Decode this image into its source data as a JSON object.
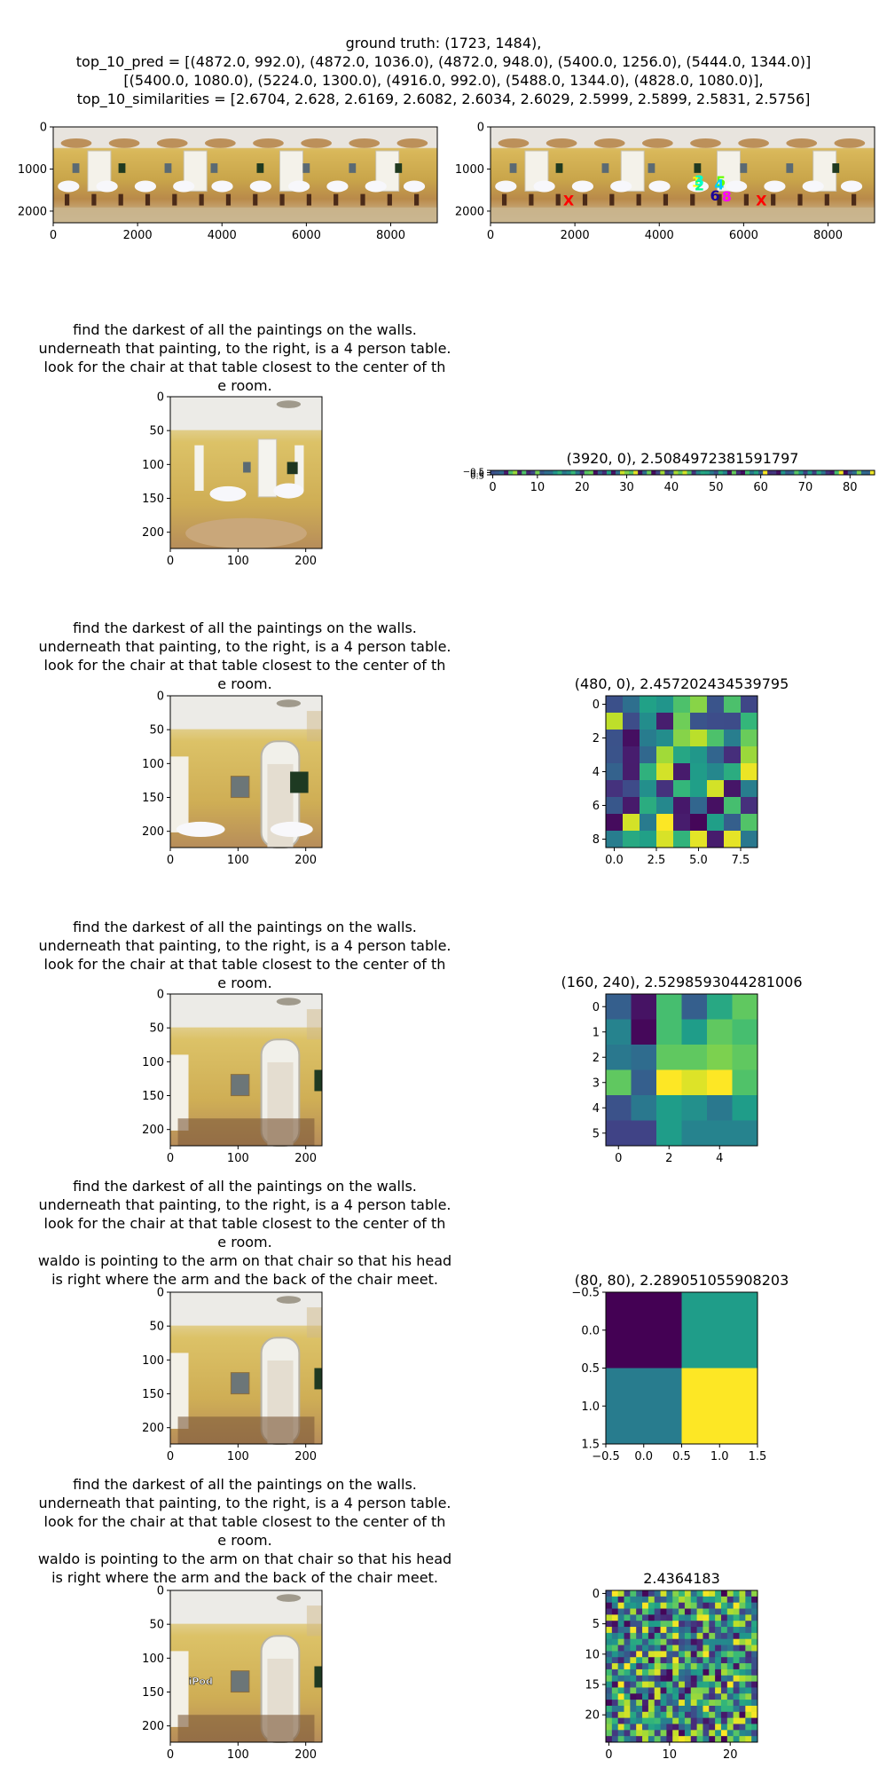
{
  "figure": {
    "suptitle": [
      "ground truth: (1723, 1484),",
      "top_10_pred = [(4872.0, 992.0), (4872.0, 1036.0), (4872.0, 948.0), (5400.0, 1256.0), (5444.0, 1344.0)]",
      "[(5400.0, 1080.0), (5224.0, 1300.0), (4916.0, 992.0), (5488.0, 1344.0), (4828.0, 1080.0)],",
      "top_10_similarities = [2.6704, 2.628, 2.6169, 2.6082, 2.6034, 2.6029, 2.5999, 2.5899, 2.5831, 2.5756]"
    ]
  },
  "instruction_lines": {
    "base": [
      "find the darkest of all the paintings on the walls.",
      "underneath that painting, to the right, is a 4 person table.",
      "look for the chair at that table closest to the center of th",
      "e room."
    ],
    "extended": [
      "find the darkest of all the paintings on the walls.",
      "underneath that painting, to the right, is a 4 person table.",
      "look for the chair at that table closest to the center of th",
      "e room.",
      "waldo is pointing to the arm on that chair so that his head",
      " is right where the arm and the back of the chair meet."
    ]
  },
  "chart_data": [
    {
      "type": "image",
      "panel": "panorama-left",
      "xticks": [
        0,
        2000,
        4000,
        6000,
        8000
      ],
      "yticks": [
        0,
        1000,
        2000
      ],
      "xlim": [
        0,
        9104
      ],
      "ylim": [
        2276,
        0
      ]
    },
    {
      "type": "image",
      "panel": "panorama-right",
      "xticks": [
        0,
        2000,
        4000,
        6000,
        8000
      ],
      "yticks": [
        0,
        1000,
        2000
      ],
      "xlim": [
        0,
        9104
      ],
      "ylim": [
        2276,
        0
      ],
      "markers": [
        {
          "label": "X",
          "x": 1850,
          "y": 1740,
          "color": "#ff0000"
        },
        {
          "label": "X",
          "x": 6420,
          "y": 1740,
          "color": "#ff0000"
        },
        {
          "label": "1",
          "x": 4880,
          "y": 1300,
          "color": "#ffff00"
        },
        {
          "label": "2",
          "x": 4950,
          "y": 1380,
          "color": "#00ff88"
        },
        {
          "label": "3",
          "x": 4950,
          "y": 1260,
          "color": "#00ffcc"
        },
        {
          "label": "5",
          "x": 5460,
          "y": 1290,
          "color": "#66ff00"
        },
        {
          "label": "6",
          "x": 5320,
          "y": 1620,
          "color": "#1a0099"
        },
        {
          "label": "8",
          "x": 5600,
          "y": 1640,
          "color": "#ff00ff"
        },
        {
          "label": "4",
          "x": 5420,
          "y": 1360,
          "color": "#00ccff"
        }
      ]
    },
    {
      "type": "image",
      "panel": "crop-1",
      "xticks": [
        0,
        100,
        200
      ],
      "yticks": [
        0,
        50,
        100,
        150,
        200
      ],
      "xlim": [
        0,
        224
      ],
      "ylim": [
        224,
        0
      ]
    },
    {
      "type": "heatmap",
      "panel": "heatmap-1",
      "title": "(3920, 0), 2.5084972381591797",
      "xticks": [
        0,
        10,
        20,
        30,
        40,
        50,
        60,
        70,
        80
      ],
      "yticks": [
        "−0.5",
        "0.0",
        "0.5"
      ],
      "rows": 1,
      "cols": 86
    },
    {
      "type": "image",
      "panel": "crop-2",
      "xticks": [
        0,
        100,
        200
      ],
      "yticks": [
        0,
        50,
        100,
        150,
        200
      ],
      "xlim": [
        0,
        224
      ],
      "ylim": [
        224,
        0
      ]
    },
    {
      "type": "heatmap",
      "panel": "heatmap-2",
      "title": "(480, 0), 2.457202434539795",
      "xticks": [
        "0.0",
        "2.5",
        "5.0",
        "7.5"
      ],
      "yticks": [
        0,
        2,
        4,
        6,
        8
      ],
      "rows": 9,
      "cols": 9
    },
    {
      "type": "image",
      "panel": "crop-3",
      "xticks": [
        0,
        100,
        200
      ],
      "yticks": [
        0,
        50,
        100,
        150,
        200
      ],
      "xlim": [
        0,
        224
      ],
      "ylim": [
        224,
        0
      ]
    },
    {
      "type": "heatmap",
      "panel": "heatmap-3",
      "title": "(160, 240), 2.5298593044281006",
      "xticks": [
        0,
        2,
        4
      ],
      "yticks": [
        0,
        1,
        2,
        3,
        4,
        5
      ],
      "rows": 6,
      "cols": 6,
      "values": [
        [
          0.3,
          0.05,
          0.7,
          0.3,
          0.6,
          0.75
        ],
        [
          0.45,
          0.02,
          0.7,
          0.55,
          0.75,
          0.7
        ],
        [
          0.4,
          0.35,
          0.75,
          0.75,
          0.8,
          0.75
        ],
        [
          0.75,
          0.3,
          1.0,
          0.95,
          1.0,
          0.72
        ],
        [
          0.25,
          0.4,
          0.55,
          0.5,
          0.4,
          0.55
        ],
        [
          0.2,
          0.2,
          0.55,
          0.45,
          0.45,
          0.45
        ]
      ]
    },
    {
      "type": "image",
      "panel": "crop-4",
      "xticks": [
        0,
        100,
        200
      ],
      "yticks": [
        0,
        50,
        100,
        150,
        200
      ],
      "xlim": [
        0,
        224
      ],
      "ylim": [
        224,
        0
      ]
    },
    {
      "type": "heatmap",
      "panel": "heatmap-4",
      "title": "(80, 80), 2.289051055908203",
      "xticks": [
        "−0.5",
        "0.0",
        "0.5",
        "1.0",
        "1.5"
      ],
      "yticks": [
        "−0.5",
        "0.0",
        "0.5",
        "1.0",
        "1.5"
      ],
      "rows": 2,
      "cols": 2,
      "values": [
        [
          0.0,
          0.55
        ],
        [
          0.42,
          1.0
        ]
      ]
    },
    {
      "type": "image",
      "panel": "crop-5",
      "xticks": [
        0,
        100,
        200
      ],
      "yticks": [
        0,
        50,
        100,
        150,
        200
      ],
      "xlim": [
        0,
        224
      ],
      "ylim": [
        224,
        0
      ],
      "overlay_text": "iPod"
    },
    {
      "type": "heatmap",
      "panel": "heatmap-5",
      "title": "2.4364183",
      "xticks": [
        0,
        10,
        20
      ],
      "yticks": [
        0,
        5,
        10,
        15,
        20
      ],
      "rows": 25,
      "cols": 25
    }
  ]
}
